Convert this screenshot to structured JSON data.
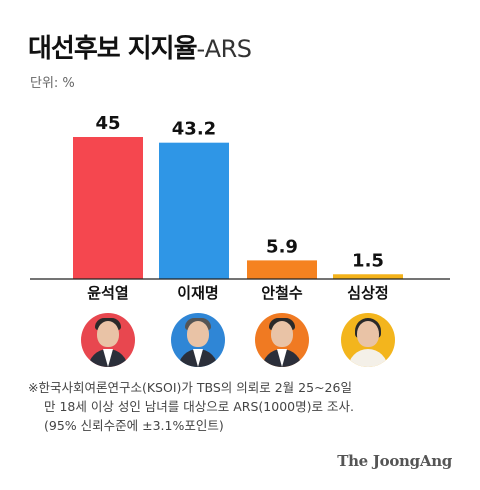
{
  "title": "대선후보 지지율",
  "subtitle": "-ARS",
  "unit_label": "단위: %",
  "chart_data": {
    "type": "bar",
    "title": "대선후보 지지율-ARS",
    "categories": [
      "윤석열",
      "이재명",
      "안철수",
      "심상정"
    ],
    "values": [
      45,
      43.2,
      5.9,
      1.5
    ],
    "value_labels": [
      "45",
      "43.2",
      "5.9",
      "1.5"
    ],
    "colors": [
      "#f5474f",
      "#2f96e6",
      "#f58220",
      "#f3b21a"
    ],
    "ylabel": "단위: %",
    "ylim": [
      0,
      45
    ],
    "grid": false,
    "legend": "none"
  },
  "candidates": [
    {
      "name": "윤석열",
      "avatar_bg": "#e8474f",
      "icon": "portrait-icon"
    },
    {
      "name": "이재명",
      "avatar_bg": "#2f86d6",
      "icon": "portrait-icon"
    },
    {
      "name": "안철수",
      "avatar_bg": "#f07a22",
      "icon": "portrait-icon"
    },
    {
      "name": "심상정",
      "avatar_bg": "#f3b51d",
      "icon": "portrait-icon"
    }
  ],
  "note": {
    "line1": "※한국사회여론연구소(KSOI)가 TBS의 의뢰로 2월 25~26일",
    "line2": "만 18세 이상 성인 남녀를 대상으로 ARS(1000명)로 조사.",
    "line3": "(95% 신뢰수준에 ±3.1%포인트)"
  },
  "logo": "The JoongAng"
}
